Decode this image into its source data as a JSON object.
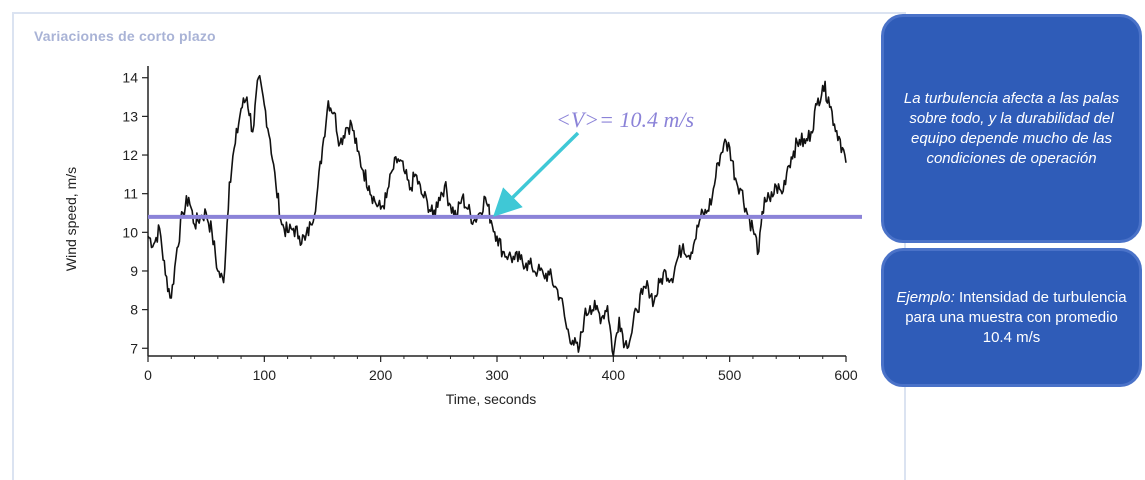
{
  "panel": {
    "title": "Variaciones de corto plazo"
  },
  "chart_data": {
    "type": "line",
    "xlabel": "Time, seconds",
    "ylabel": "Wind speed, m/s",
    "xlim": [
      0,
      600
    ],
    "ylim": [
      6.8,
      14.2
    ],
    "xticks": [
      0,
      100,
      200,
      300,
      400,
      500,
      600
    ],
    "yticks": [
      7,
      8,
      9,
      10,
      11,
      12,
      13,
      14
    ],
    "mean_value": 10.4,
    "mean_label": "<V>= 10.4 m/s",
    "series": [
      {
        "x": [
          0,
          5,
          10,
          15,
          20,
          25,
          30,
          35,
          40,
          45,
          50,
          55,
          60,
          65,
          70,
          75,
          80,
          85,
          90,
          95,
          100,
          105,
          110,
          115,
          120,
          125,
          130,
          135,
          140,
          145,
          150,
          155,
          160,
          165,
          170,
          175,
          180,
          185,
          190,
          195,
          200,
          205,
          210,
          215,
          220,
          225,
          230,
          235,
          240,
          245,
          250,
          255,
          260,
          265,
          270,
          275,
          280,
          285,
          290,
          295,
          300,
          305,
          310,
          315,
          320,
          325,
          330,
          335,
          340,
          345,
          350,
          355,
          360,
          365,
          370,
          375,
          380,
          385,
          390,
          395,
          400,
          405,
          410,
          415,
          420,
          425,
          430,
          435,
          440,
          445,
          450,
          455,
          460,
          465,
          470,
          475,
          480,
          485,
          490,
          495,
          500,
          505,
          510,
          515,
          520,
          525,
          530,
          535,
          540,
          545,
          550,
          555,
          560,
          565,
          570,
          575,
          580,
          585,
          590,
          595,
          600
        ],
        "values": [
          9.9,
          9.7,
          10.1,
          8.9,
          8.3,
          9.6,
          10.5,
          10.9,
          10.2,
          10.4,
          10.5,
          10.0,
          9.0,
          8.7,
          11.3,
          12.3,
          13.2,
          13.5,
          12.6,
          14.0,
          13.3,
          12.4,
          11.2,
          10.2,
          10.0,
          10.1,
          9.9,
          9.8,
          10.2,
          10.9,
          12.2,
          13.4,
          13.1,
          12.3,
          12.7,
          12.8,
          12.1,
          11.6,
          11.2,
          10.8,
          10.6,
          10.9,
          11.6,
          11.9,
          11.6,
          11.1,
          11.5,
          11.0,
          10.8,
          10.4,
          10.9,
          11.2,
          10.7,
          10.4,
          10.9,
          10.6,
          10.3,
          10.5,
          10.9,
          10.3,
          9.9,
          9.5,
          9.4,
          9.3,
          9.3,
          9.2,
          9.1,
          9.0,
          8.9,
          8.9,
          8.6,
          8.3,
          7.5,
          7.2,
          6.9,
          7.8,
          8.1,
          8.0,
          7.8,
          8.1,
          6.8,
          7.8,
          7.1,
          7.3,
          8.0,
          8.4,
          8.6,
          8.2,
          8.7,
          9.0,
          8.8,
          9.3,
          9.7,
          9.4,
          9.8,
          10.4,
          10.5,
          10.9,
          11.8,
          12.3,
          12.2,
          11.4,
          11.1,
          10.5,
          10.1,
          9.5,
          10.9,
          10.8,
          11.2,
          11.0,
          11.7,
          12.1,
          12.4,
          12.3,
          12.6,
          13.3,
          13.8,
          13.5,
          12.8,
          12.4,
          11.8
        ]
      }
    ]
  },
  "callouts": {
    "first": "La turbulencia afecta a las palas sobre todo, y la durabilidad del equipo depende mucho de las condiciones de operación",
    "second_em": "Ejemplo:",
    "second_rest": " Intensidad de turbulencia para una muestra con promedio 10.4 m/s"
  },
  "colors": {
    "line": "#111111",
    "mean_line": "#8b83d8",
    "arrow": "#3fc8d6",
    "callout_bg": "#2f5cb8"
  }
}
